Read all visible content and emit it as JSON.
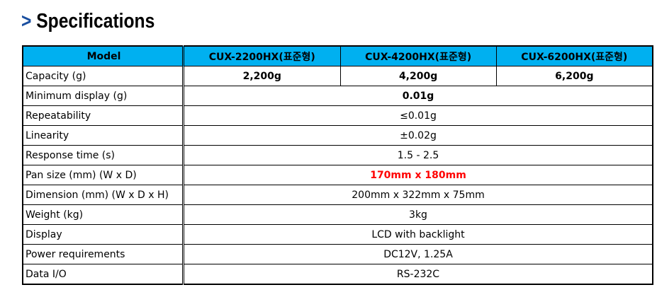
{
  "title": "Specifications",
  "accent": "#00b0f0",
  "header": {
    "model": "Model",
    "cols": [
      "CUX-2200HX(표준형)",
      "CUX-4200HX(표준형)",
      "CUX-6200HX(표준형)"
    ]
  },
  "capacity": {
    "label": "Capacity (g)",
    "values": [
      "2,200g",
      "4,200g",
      "6,200g"
    ]
  },
  "rows": [
    {
      "label": "Minimum display (g)",
      "value": "0.01g"
    },
    {
      "label": "Repeatability",
      "value": "≤0.01g"
    },
    {
      "label": "Linearity",
      "value": "±0.02g"
    },
    {
      "label": "Response time (s)",
      "value": "1.5 - 2.5"
    },
    {
      "label": "Pan size (mm) (W x D)",
      "value": "170mm x 180mm"
    },
    {
      "label": "Dimension (mm) (W x D x H)",
      "value": "200mm x 322mm x 75mm"
    },
    {
      "label": "Weight (kg)",
      "value": "3kg"
    },
    {
      "label": "Display",
      "value": "LCD with backlight"
    },
    {
      "label": "Power requirements",
      "value": "DC12V, 1.25A"
    },
    {
      "label": "Data I/O",
      "value": "RS-232C"
    }
  ]
}
